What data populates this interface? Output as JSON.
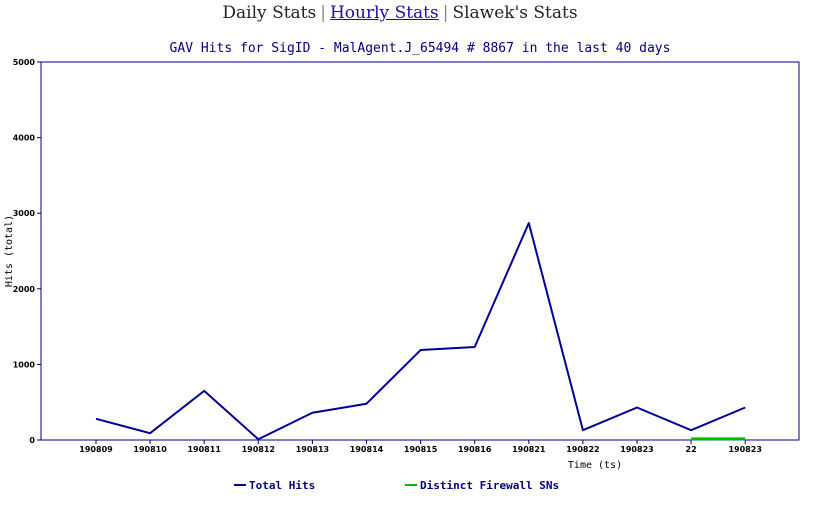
{
  "nav": {
    "daily": "Daily Stats",
    "hourly": "Hourly Stats",
    "slawek": "Slawek's Stats",
    "separator": "|"
  },
  "chart_data": {
    "type": "line",
    "title": "GAV Hits for SigID - MalAgent.J_65494 # 8867 in the last 40 days",
    "xlabel": "Time (ts)",
    "ylabel": "Hits (total)",
    "ylim": [
      0,
      5000
    ],
    "yticks": [
      0,
      1000,
      2000,
      3000,
      4000,
      5000
    ],
    "grid": false,
    "legend_position": "bottom",
    "categories": [
      "190809",
      "190810",
      "190811",
      "190812",
      "190813",
      "190814",
      "190815",
      "190816",
      "190821",
      "190822",
      "190823",
      "22",
      "190823"
    ],
    "series": [
      {
        "name": "Total Hits",
        "color": "#000099",
        "values": [
          280,
          90,
          650,
          10,
          360,
          480,
          1190,
          1230,
          2870,
          130,
          430,
          130,
          430
        ]
      },
      {
        "name": "Distinct Firewall SNs",
        "color": "#00bb00",
        "points": [
          [
            11,
            15
          ],
          [
            12,
            15
          ]
        ]
      }
    ]
  }
}
